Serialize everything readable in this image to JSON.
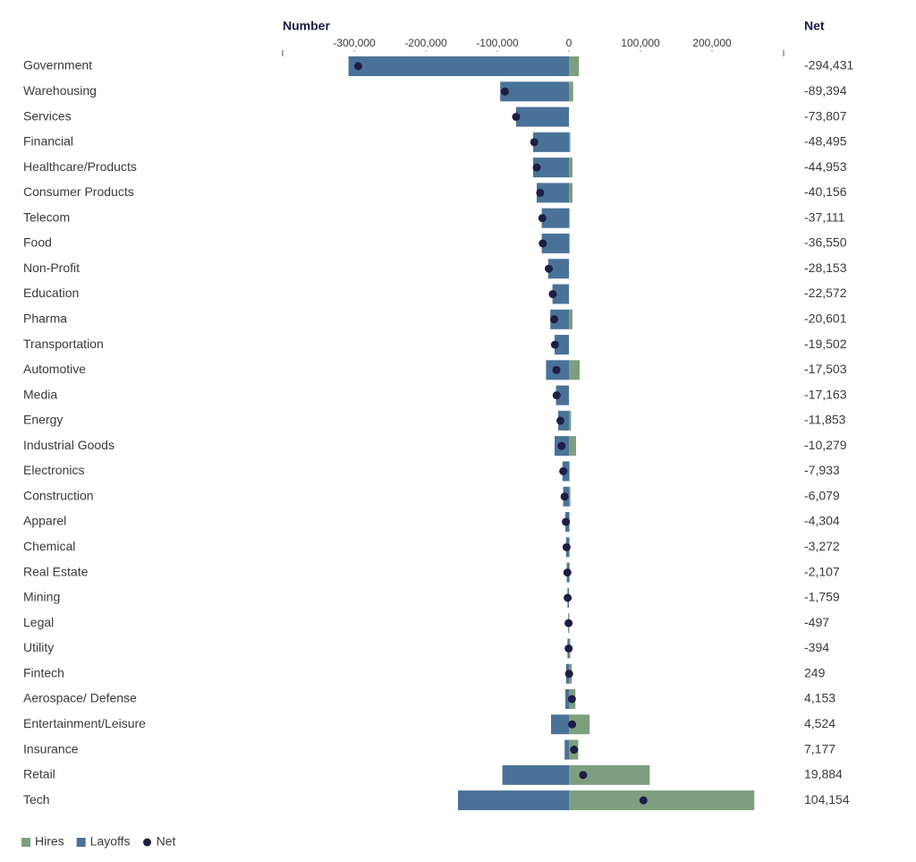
{
  "chart_data": {
    "type": "bar",
    "x_label": "Number",
    "value_column_title": "Net",
    "categories": [
      "Government",
      "Warehousing",
      "Services",
      "Financial",
      "Healthcare/Products",
      "Consumer Products",
      "Telecom",
      "Food",
      "Non-Profit",
      "Education",
      "Pharma",
      "Transportation",
      "Automotive",
      "Media",
      "Energy",
      "Industrial Goods",
      "Electronics",
      "Construction",
      "Apparel",
      "Chemical",
      "Real Estate",
      "Mining",
      "Legal",
      "Utility",
      "Fintech",
      "Aerospace/ Defense",
      "Entertainment/Leisure",
      "Insurance",
      "Retail",
      "Tech"
    ],
    "series": [
      {
        "name": "Hires",
        "color": "#7d9f7e",
        "mark": "bar",
        "values": [
          14000,
          6000,
          0,
          2000,
          5000,
          5000,
          1000,
          1000,
          0,
          0,
          5000,
          0,
          15000,
          0,
          3000,
          10000,
          1000,
          2000,
          1000,
          1000,
          1000,
          0,
          500,
          2000,
          4000,
          9000,
          29000,
          13000,
          113000,
          259000
        ]
      },
      {
        "name": "Layoffs",
        "color": "#4a7298",
        "mark": "bar",
        "values": [
          -308000,
          -96000,
          -74000,
          -50000,
          -50000,
          -45000,
          -38000,
          -38000,
          -29000,
          -23000,
          -26000,
          -20000,
          -32000,
          -18000,
          -15000,
          -20000,
          -9000,
          -8000,
          -5000,
          -4000,
          -3000,
          -2000,
          -1000,
          -2000,
          -4000,
          -5000,
          -25000,
          -6000,
          -93000,
          -155000
        ]
      },
      {
        "name": "Net",
        "color": "#1c1e45",
        "mark": "dot",
        "values": [
          -294431,
          -89394,
          -73807,
          -48495,
          -44953,
          -40156,
          -37111,
          -36550,
          -28153,
          -22572,
          -20601,
          -19502,
          -17503,
          -17163,
          -11853,
          -10279,
          -7933,
          -6079,
          -4304,
          -3272,
          -2107,
          -1759,
          -497,
          -394,
          249,
          4153,
          4524,
          7177,
          19884,
          104154
        ],
        "value_labels": [
          "-294,431",
          "-89,394",
          "-73,807",
          "-48,495",
          "-44,953",
          "-40,156",
          "-37,111",
          "-36,550",
          "-28,153",
          "-22,572",
          "-20,601",
          "-19,502",
          "-17,503",
          "-17,163",
          "-11,853",
          "-10,279",
          "-7,933",
          "-6,079",
          "-4,304",
          "-3,272",
          "-2,107",
          "-1,759",
          "-497",
          "-394",
          "249",
          "4,153",
          "4,524",
          "7,177",
          "19,884",
          "104,154"
        ]
      }
    ],
    "xlim": [
      -400000,
      300000
    ],
    "xticks": [
      {
        "value": -300000,
        "label": "-300,000"
      },
      {
        "value": -200000,
        "label": "-200,000"
      },
      {
        "value": -100000,
        "label": "-100,000"
      },
      0,
      {
        "value": 100000,
        "label": "100,000"
      },
      {
        "value": 200000,
        "label": "200,000"
      }
    ]
  }
}
